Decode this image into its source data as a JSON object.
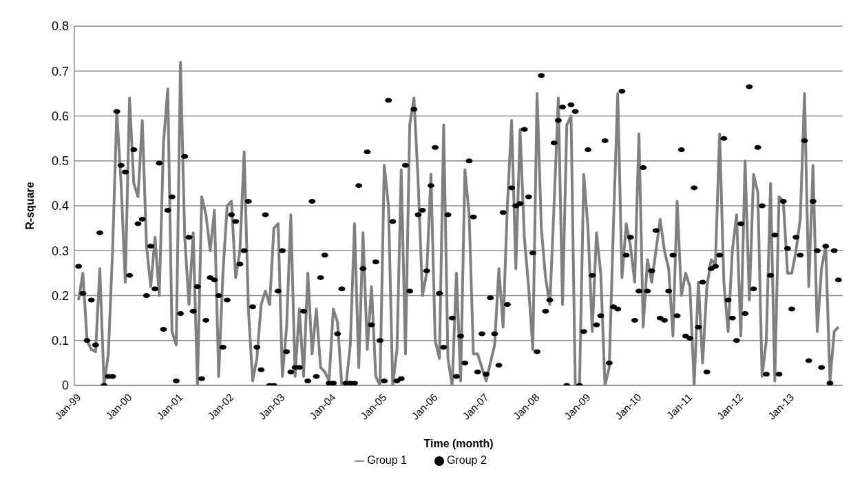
{
  "chart_data": {
    "type": "line",
    "xlabel": "Time (month)",
    "ylabel": "R-square",
    "x": [
      "1999-01",
      "1999-02",
      "1999-03",
      "1999-04",
      "1999-05",
      "1999-06",
      "1999-07",
      "1999-08",
      "1999-09",
      "1999-10",
      "1999-11",
      "1999-12",
      "2000-01",
      "2000-02",
      "2000-03",
      "2000-04",
      "2000-05",
      "2000-06",
      "2000-07",
      "2000-08",
      "2000-09",
      "2000-10",
      "2000-11",
      "2000-12",
      "2001-01",
      "2001-02",
      "2001-03",
      "2001-04",
      "2001-05",
      "2001-06",
      "2001-07",
      "2001-08",
      "2001-09",
      "2001-10",
      "2001-11",
      "2001-12",
      "2002-01",
      "2002-02",
      "2002-03",
      "2002-04",
      "2002-05",
      "2002-06",
      "2002-07",
      "2002-08",
      "2002-09",
      "2002-10",
      "2002-11",
      "2002-12",
      "2003-01",
      "2003-02",
      "2003-03",
      "2003-04",
      "2003-05",
      "2003-06",
      "2003-07",
      "2003-08",
      "2003-09",
      "2003-10",
      "2003-11",
      "2003-12",
      "2004-01",
      "2004-02",
      "2004-03",
      "2004-04",
      "2004-05",
      "2004-06",
      "2004-07",
      "2004-08",
      "2004-09",
      "2004-10",
      "2004-11",
      "2004-12",
      "2005-01",
      "2005-02",
      "2005-03",
      "2005-04",
      "2005-05",
      "2005-06",
      "2005-07",
      "2005-08",
      "2005-09",
      "2005-10",
      "2005-11",
      "2005-12",
      "2006-01",
      "2006-02",
      "2006-03",
      "2006-04",
      "2006-05",
      "2006-06",
      "2006-07",
      "2006-08",
      "2006-09",
      "2006-10",
      "2006-11",
      "2006-12",
      "2007-01",
      "2007-02",
      "2007-03",
      "2007-04",
      "2007-05",
      "2007-06",
      "2007-07",
      "2007-08",
      "2007-09",
      "2007-10",
      "2007-11",
      "2007-12",
      "2008-01",
      "2008-02",
      "2008-03",
      "2008-04",
      "2008-05",
      "2008-06",
      "2008-07",
      "2008-08",
      "2008-09",
      "2008-10",
      "2008-11",
      "2008-12",
      "2009-01",
      "2009-02",
      "2009-03",
      "2009-04",
      "2009-05",
      "2009-06",
      "2009-07",
      "2009-08",
      "2009-09",
      "2009-10",
      "2009-11",
      "2009-12",
      "2010-01",
      "2010-02",
      "2010-03",
      "2010-04",
      "2010-05",
      "2010-06",
      "2010-07",
      "2010-08",
      "2010-09",
      "2010-10",
      "2010-11",
      "2010-12",
      "2011-01",
      "2011-02",
      "2011-03",
      "2011-04",
      "2011-05",
      "2011-06",
      "2011-07",
      "2011-08",
      "2011-09",
      "2011-10",
      "2011-11",
      "2011-12",
      "2012-01",
      "2012-02",
      "2012-03",
      "2012-04",
      "2012-05",
      "2012-06",
      "2012-07",
      "2012-08",
      "2012-09",
      "2012-10",
      "2012-11",
      "2012-12",
      "2013-01",
      "2013-02",
      "2013-03",
      "2013-04",
      "2013-05",
      "2013-06",
      "2013-07",
      "2013-08",
      "2013-09",
      "2013-10",
      "2013-11",
      "2013-12"
    ],
    "series": [
      {
        "name": "Group 1",
        "color": "#808080",
        "marker": "none",
        "values": [
          0.19,
          0.25,
          0.1,
          0.08,
          0.075,
          0.26,
          0.0,
          0.07,
          0.3,
          0.61,
          0.45,
          0.23,
          0.64,
          0.45,
          0.42,
          0.59,
          0.31,
          0.22,
          0.33,
          0.2,
          0.54,
          0.66,
          0.12,
          0.09,
          0.72,
          0.33,
          0.18,
          0.34,
          0.0,
          0.42,
          0.38,
          0.3,
          0.39,
          0.02,
          0.25,
          0.4,
          0.41,
          0.24,
          0.3,
          0.52,
          0.17,
          0.01,
          0.06,
          0.18,
          0.21,
          0.18,
          0.35,
          0.36,
          0.02,
          0.13,
          0.38,
          0.02,
          0.17,
          0.02,
          0.25,
          0.07,
          0.17,
          0.04,
          0.03,
          0.01,
          0.17,
          0.14,
          0.0,
          0.0,
          0.09,
          0.36,
          0.04,
          0.34,
          0.08,
          0.22,
          0.02,
          0.0,
          0.49,
          0.4,
          0.0,
          0.08,
          0.48,
          0.07,
          0.58,
          0.64,
          0.45,
          0.2,
          0.25,
          0.47,
          0.1,
          0.06,
          0.58,
          0.06,
          0.0,
          0.25,
          0.01,
          0.48,
          0.38,
          0.07,
          0.07,
          0.04,
          0.01,
          0.05,
          0.09,
          0.26,
          0.13,
          0.4,
          0.59,
          0.26,
          0.57,
          0.33,
          0.22,
          0.08,
          0.65,
          0.35,
          0.24,
          0.18,
          0.4,
          0.64,
          0.18,
          0.58,
          0.6,
          0.0,
          0.0,
          0.47,
          0.35,
          0.12,
          0.34,
          0.25,
          0.0,
          0.04,
          0.36,
          0.65,
          0.24,
          0.36,
          0.31,
          0.23,
          0.56,
          0.13,
          0.28,
          0.23,
          0.3,
          0.37,
          0.3,
          0.26,
          0.11,
          0.41,
          0.2,
          0.25,
          0.22,
          0.0,
          0.23,
          0.05,
          0.22,
          0.28,
          0.27,
          0.56,
          0.23,
          0.12,
          0.3,
          0.38,
          0.11,
          0.5,
          0.19,
          0.47,
          0.43,
          0.02,
          0.1,
          0.45,
          0.01,
          0.42,
          0.41,
          0.25,
          0.25,
          0.3,
          0.37,
          0.65,
          0.22,
          0.49,
          0.12,
          0.26,
          0.31,
          0.01,
          0.12,
          0.13
        ]
      },
      {
        "name": "Group 2",
        "type": "scatter",
        "color": "#000000",
        "marker": "circle",
        "values": [
          0.265,
          0.205,
          0.1,
          0.19,
          0.09,
          0.34,
          0.0,
          0.02,
          0.02,
          0.61,
          0.49,
          0.475,
          0.245,
          0.525,
          0.36,
          0.37,
          0.2,
          0.31,
          0.215,
          0.495,
          0.125,
          0.39,
          0.42,
          0.01,
          0.16,
          0.51,
          0.33,
          0.165,
          0.22,
          0.015,
          0.145,
          0.24,
          0.235,
          0.2,
          0.085,
          0.19,
          0.38,
          0.365,
          0.27,
          0.3,
          0.41,
          0.175,
          0.085,
          0.035,
          0.38,
          0.0,
          0.0,
          0.21,
          0.3,
          0.075,
          0.03,
          0.04,
          0.04,
          0.165,
          0.01,
          0.41,
          0.02,
          0.24,
          0.29,
          0.005,
          0.005,
          0.115,
          0.215,
          0.005,
          0.005,
          0.005,
          0.445,
          0.26,
          0.52,
          0.135,
          0.275,
          0.1,
          0.01,
          0.635,
          0.365,
          0.01,
          0.015,
          0.49,
          0.21,
          0.615,
          0.38,
          0.39,
          0.255,
          0.445,
          0.53,
          0.205,
          0.085,
          0.38,
          0.15,
          0.02,
          0.11,
          0.05,
          0.5,
          0.375,
          0.03,
          0.115,
          0.025,
          0.195,
          0.115,
          0.045,
          0.385,
          0.18,
          0.44,
          0.4,
          0.405,
          0.57,
          0.42,
          0.295,
          0.075,
          0.69,
          0.165,
          0.19,
          0.54,
          0.59,
          0.62,
          0.0,
          0.625,
          0.61,
          0.0,
          0.12,
          0.525,
          0.245,
          0.135,
          0.155,
          0.545,
          0.05,
          0.175,
          0.17,
          0.655,
          0.29,
          0.33,
          0.145,
          0.21,
          0.485,
          0.21,
          0.255,
          0.345,
          0.15,
          0.145,
          0.21,
          0.29,
          0.155,
          0.525,
          0.11,
          0.105,
          0.44,
          0.13,
          0.23,
          0.03,
          0.26,
          0.265,
          0.29,
          0.55,
          0.19,
          0.15,
          0.1,
          0.36,
          0.16,
          0.665,
          0.215,
          0.53,
          0.4,
          0.025,
          0.245,
          0.335,
          0.025,
          0.41,
          0.305,
          0.17,
          0.33,
          0.29,
          0.545,
          0.055,
          0.41,
          0.3,
          0.04,
          0.31,
          0.005,
          0.3,
          0.235
        ]
      }
    ],
    "xlim": [
      "1998-12",
      "2014-01"
    ],
    "xticks": [
      {
        "value": "1999-01",
        "label": "Jan-99"
      },
      {
        "value": "2000-01",
        "label": "Jan-00"
      },
      {
        "value": "2001-01",
        "label": "Jan-01"
      },
      {
        "value": "2002-01",
        "label": "Jan-02"
      },
      {
        "value": "2003-01",
        "label": "Jan-03"
      },
      {
        "value": "2004-01",
        "label": "Jan-04"
      },
      {
        "value": "2005-01",
        "label": "Jan-05"
      },
      {
        "value": "2006-01",
        "label": "Jan-06"
      },
      {
        "value": "2007-01",
        "label": "Jan-07"
      },
      {
        "value": "2008-01",
        "label": "Jan-08"
      },
      {
        "value": "2009-01",
        "label": "Jan-09"
      },
      {
        "value": "2010-01",
        "label": "Jan-10"
      },
      {
        "value": "2011-01",
        "label": "Jan-11"
      },
      {
        "value": "2012-01",
        "label": "Jan-12"
      },
      {
        "value": "2013-01",
        "label": "Jan-13"
      }
    ],
    "ylim": [
      0,
      0.8
    ],
    "yticks": [
      0,
      0.1,
      0.2,
      0.3,
      0.4,
      0.5,
      0.6,
      0.7,
      0.8
    ],
    "grid": "y",
    "legend": "bottom",
    "line_style": "solid"
  }
}
